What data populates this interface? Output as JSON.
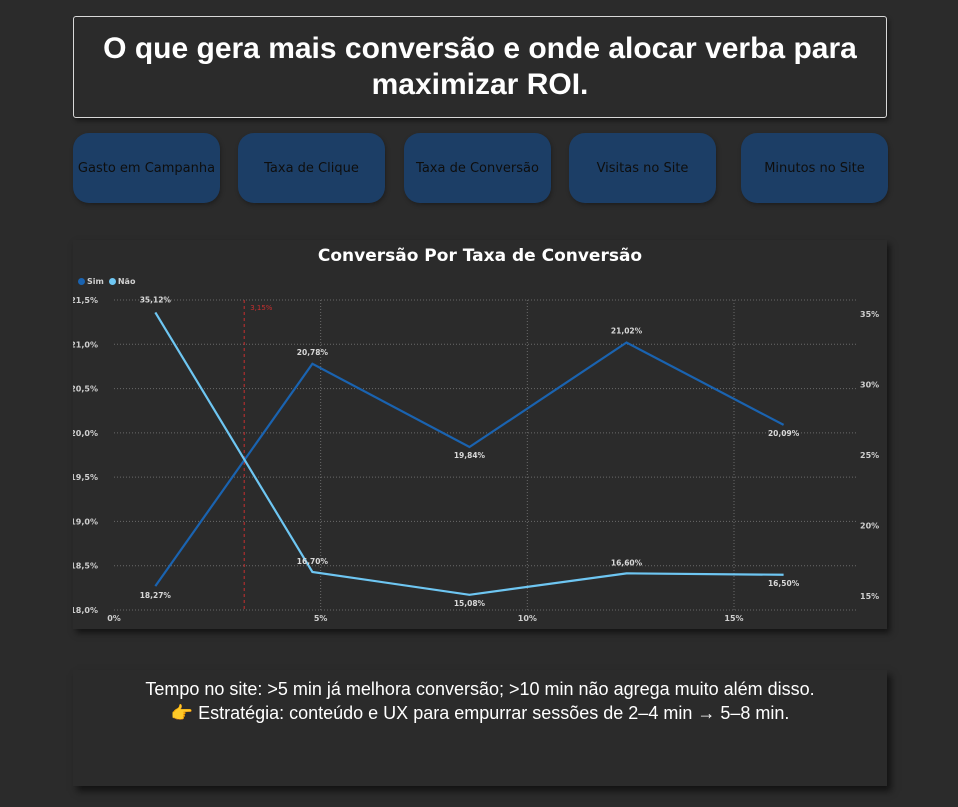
{
  "header": {
    "title": "O que gera mais conversão e onde alocar verba para maximizar ROI."
  },
  "nav": {
    "buttons": [
      {
        "label": "Gasto em Campanha"
      },
      {
        "label": "Taxa de Clique"
      },
      {
        "label": "Taxa de Conversão"
      },
      {
        "label": "Visitas no Site"
      },
      {
        "label": "Minutos no Site"
      }
    ],
    "button_color": "#1c3e66"
  },
  "chart_data": {
    "type": "line",
    "title": "Conversão Por Taxa de Conversão",
    "legend": [
      "Sim",
      "Não"
    ],
    "legend_placement": "top-left",
    "x": [
      0.01,
      0.048,
      0.086,
      0.124,
      0.162
    ],
    "x_ticks": [
      "0%",
      "5%",
      "10%",
      "15%"
    ],
    "x_tick_values": [
      0,
      0.05,
      0.1,
      0.15
    ],
    "xlim": [
      0,
      0.18
    ],
    "y_left_ticks": [
      "21,5%",
      "21,0%",
      "20,5%",
      "20,0%",
      "19,5%",
      "19,0%",
      "18,5%",
      "18,0%"
    ],
    "y_left_tick_values": [
      21.5,
      21.0,
      20.5,
      20.0,
      19.5,
      19.0,
      18.5,
      18.0
    ],
    "ylim_left": [
      18.0,
      21.5
    ],
    "y_right_ticks": [
      "35%",
      "30%",
      "25%",
      "20%",
      "15%"
    ],
    "y_right_tick_values": [
      35,
      30,
      25,
      20,
      15
    ],
    "ylim_right": [
      14.0,
      36.0
    ],
    "series": [
      {
        "name": "Sim",
        "axis": "left",
        "color": "#1a63b0",
        "values": [
          18.27,
          20.78,
          19.84,
          21.02,
          20.09
        ],
        "labels": [
          "18,27%",
          "20,78%",
          "19,84%",
          "21,02%",
          "20,09%"
        ]
      },
      {
        "name": "Não",
        "axis": "right",
        "color": "#6ec6f2",
        "values": [
          35.12,
          16.7,
          15.08,
          16.6,
          16.5
        ],
        "labels": [
          "35,12%",
          "16,70%",
          "15,08%",
          "16,60%",
          "16,50%"
        ]
      }
    ],
    "reference_line": {
      "x": 0.0315,
      "label": "3,15%",
      "color": "#c62f2f"
    },
    "grid": true
  },
  "note": {
    "line1": "Tempo no site: >5 min já melhora conversão; >10 min não agrega muito além disso.",
    "line2_icon": "👉",
    "line2": "Estratégia: conteúdo e UX para empurrar sessões de 2–4 min → 5–8 min."
  }
}
